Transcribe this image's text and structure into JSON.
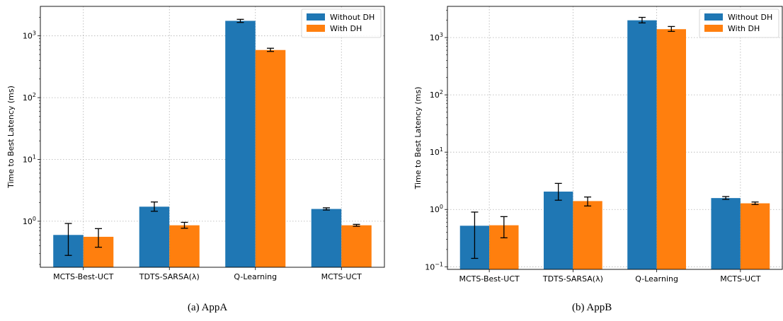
{
  "legend_labels": [
    "Without DH",
    "With DH"
  ],
  "colors": {
    "without_dh": "#1f77b4",
    "with_dh": "#ff7f0e"
  },
  "chart_data": [
    {
      "type": "bar",
      "yscale": "log",
      "ylabel": "Time to Best Latency (ms)",
      "ylim": [
        0.18,
        3000
      ],
      "grid": true,
      "legend_position": "top-right",
      "categories": [
        "MCTS-Best-UCT",
        "TDTS-SARSA(λ)",
        "Q-Learning",
        "MCTS-UCT"
      ],
      "series": [
        {
          "name": "Without DH",
          "values": [
            0.6,
            1.72,
            1750,
            1.58
          ],
          "error_low": [
            0.28,
            1.45,
            1650,
            1.52
          ],
          "error_high": [
            0.92,
            2.05,
            1850,
            1.65
          ]
        },
        {
          "name": "With DH",
          "values": [
            0.56,
            0.86,
            590,
            0.86
          ],
          "error_low": [
            0.38,
            0.77,
            560,
            0.83
          ],
          "error_high": [
            0.76,
            0.96,
            630,
            0.89
          ]
        }
      ],
      "yticks": [
        1,
        10,
        100,
        1000
      ],
      "caption": "(a)  AppA"
    },
    {
      "type": "bar",
      "yscale": "log",
      "ylabel": "Time to Best Latency (ms)",
      "ylim": [
        0.09,
        3500
      ],
      "grid": true,
      "legend_position": "top-right",
      "categories": [
        "MCTS-Best-UCT",
        "TDTS-SARSA(λ)",
        "Q-Learning",
        "MCTS-UCT"
      ],
      "series": [
        {
          "name": "Without DH",
          "values": [
            0.52,
            2.05,
            2000,
            1.58
          ],
          "error_low": [
            0.14,
            1.45,
            1800,
            1.5
          ],
          "error_high": [
            0.9,
            2.85,
            2250,
            1.68
          ]
        },
        {
          "name": "With DH",
          "values": [
            0.53,
            1.4,
            1400,
            1.28
          ],
          "error_low": [
            0.32,
            1.15,
            1280,
            1.22
          ],
          "error_high": [
            0.75,
            1.65,
            1560,
            1.35
          ]
        }
      ],
      "yticks": [
        0.1,
        1,
        10,
        100,
        1000
      ],
      "caption": "(b)  AppB"
    }
  ]
}
